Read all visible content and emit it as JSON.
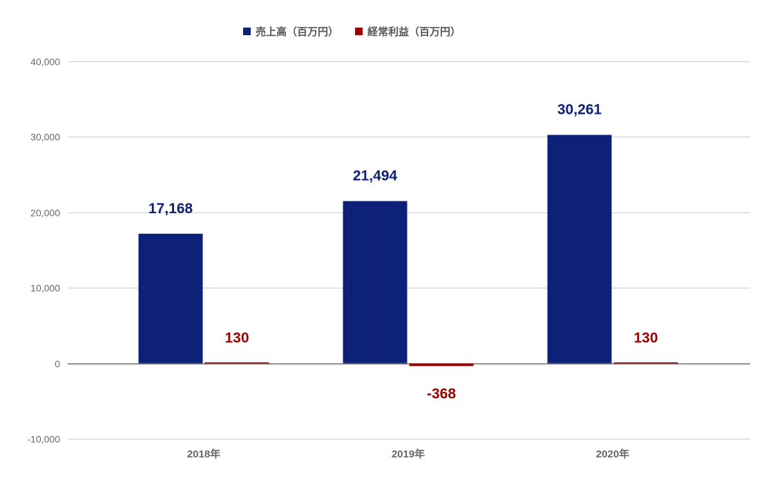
{
  "chart_data": {
    "type": "bar",
    "categories": [
      "2018年",
      "2019年",
      "2020年"
    ],
    "series": [
      {
        "name": "売上高（百万円）",
        "values": [
          17168,
          21494,
          30261
        ],
        "labels": [
          "17,168",
          "21,494",
          "30,261"
        ],
        "color": "#0d2178"
      },
      {
        "name": "経常利益（百万円）",
        "values": [
          130,
          -368,
          130
        ],
        "labels": [
          "130",
          "-368",
          "130"
        ],
        "color": "#990000"
      }
    ],
    "title": "",
    "xlabel": "",
    "ylabel": "",
    "ylim": [
      -10000,
      40000
    ],
    "yticks": [
      40000,
      30000,
      20000,
      10000,
      0,
      -10000
    ],
    "ytick_labels": [
      "40,000",
      "30,000",
      "20,000",
      "10,000",
      "0",
      "-10,000"
    ],
    "grid": true,
    "legend_position": "top"
  }
}
